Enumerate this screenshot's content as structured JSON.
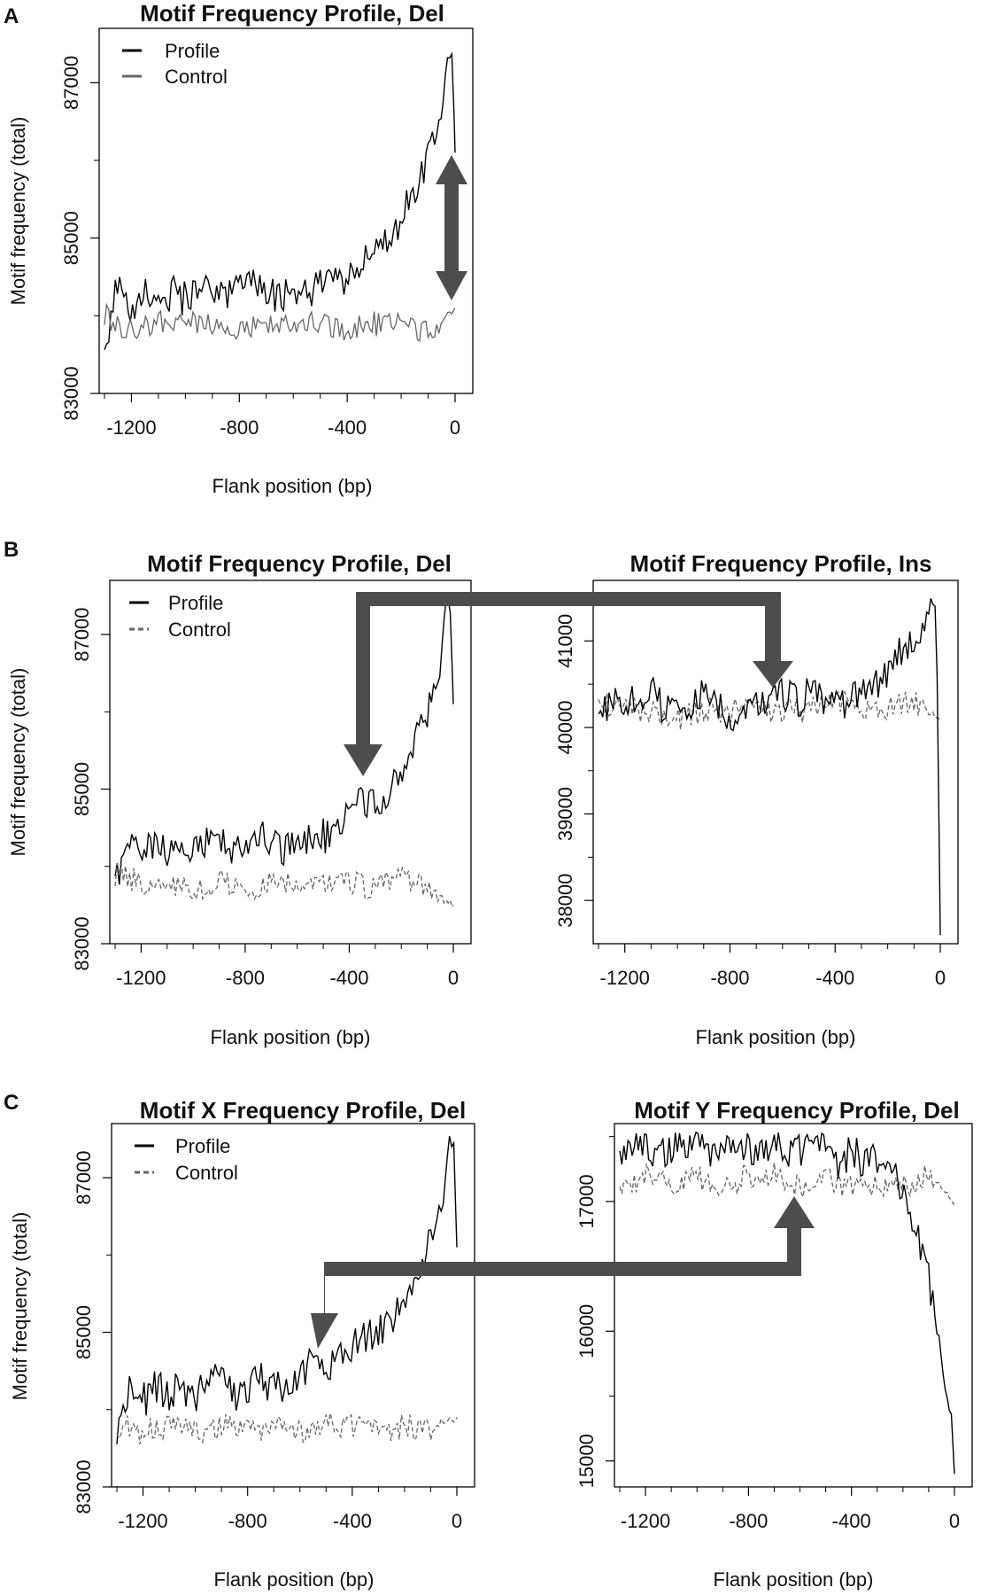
{
  "panels": [
    {
      "label": "A"
    },
    {
      "label": "B"
    },
    {
      "label": "C"
    }
  ],
  "colors": {
    "profile": "#000000",
    "control": "#666666",
    "arrow": "#4d4d4d"
  },
  "chart_data": [
    {
      "panel": "A",
      "type": "line",
      "title": "Motif Frequency Profile, Del",
      "xlabel": "Flank position (bp)",
      "ylabel": "Motif frequency (total)",
      "xlim": [
        -1300,
        0
      ],
      "ylim": [
        83000,
        87700
      ],
      "xticks": [
        -1200,
        -800,
        -400,
        0
      ],
      "yticks": [
        83000,
        85000,
        87000
      ],
      "legend": {
        "placement": "top-left",
        "entries": [
          "Profile",
          "Control"
        ]
      },
      "control_style": "solid",
      "annotations": [
        "double-arrow between Profile and Control near position 0"
      ],
      "series": [
        {
          "name": "Profile",
          "points": [
            [
              -1300,
              83600
            ],
            [
              -1250,
              84400
            ],
            [
              -1200,
              84100
            ],
            [
              -1150,
              84300
            ],
            [
              -1100,
              84200
            ],
            [
              -1050,
              84300
            ],
            [
              -1000,
              84200
            ],
            [
              -950,
              84300
            ],
            [
              -900,
              84400
            ],
            [
              -850,
              84200
            ],
            [
              -800,
              84300
            ],
            [
              -750,
              84400
            ],
            [
              -700,
              84300
            ],
            [
              -650,
              84200
            ],
            [
              -600,
              84400
            ],
            [
              -550,
              84300
            ],
            [
              -500,
              84400
            ],
            [
              -450,
              84400
            ],
            [
              -400,
              84500
            ],
            [
              -350,
              84700
            ],
            [
              -300,
              84800
            ],
            [
              -250,
              84900
            ],
            [
              -200,
              85300
            ],
            [
              -150,
              85600
            ],
            [
              -100,
              86000
            ],
            [
              -50,
              86500
            ],
            [
              -30,
              87400
            ],
            [
              -10,
              87300
            ],
            [
              0,
              86100
            ]
          ]
        },
        {
          "name": "Control",
          "points": [
            [
              -1300,
              84000
            ],
            [
              -1200,
              83800
            ],
            [
              -1100,
              83900
            ],
            [
              -1000,
              83900
            ],
            [
              -900,
              83900
            ],
            [
              -800,
              83800
            ],
            [
              -700,
              83900
            ],
            [
              -600,
              83900
            ],
            [
              -500,
              83900
            ],
            [
              -400,
              83800
            ],
            [
              -300,
              83900
            ],
            [
              -200,
              83900
            ],
            [
              -100,
              83800
            ],
            [
              0,
              84100
            ]
          ]
        }
      ]
    },
    {
      "panel": "B",
      "type": "line",
      "title": "Motif Frequency Profile, Del",
      "xlabel": "Flank position (bp)",
      "ylabel": "Motif frequency (total)",
      "xlim": [
        -1300,
        0
      ],
      "ylim": [
        83000,
        87700
      ],
      "xticks": [
        -1200,
        -800,
        -400,
        0
      ],
      "yticks": [
        83000,
        85000,
        87000
      ],
      "legend": {
        "placement": "top-left",
        "entries": [
          "Profile",
          "Control"
        ]
      },
      "control_style": "dashed",
      "annotations": [
        "arrow from Ins panel at position -650 to Del panel at position -380"
      ],
      "series": [
        {
          "name": "Profile",
          "points": [
            [
              -1300,
              83700
            ],
            [
              -1250,
              84400
            ],
            [
              -1200,
              84100
            ],
            [
              -1150,
              84300
            ],
            [
              -1100,
              84200
            ],
            [
              -1050,
              84300
            ],
            [
              -1000,
              84200
            ],
            [
              -950,
              84300
            ],
            [
              -900,
              84400
            ],
            [
              -850,
              84200
            ],
            [
              -800,
              84300
            ],
            [
              -750,
              84400
            ],
            [
              -700,
              84300
            ],
            [
              -650,
              84200
            ],
            [
              -600,
              84400
            ],
            [
              -550,
              84300
            ],
            [
              -500,
              84400
            ],
            [
              -450,
              84400
            ],
            [
              -400,
              84700
            ],
            [
              -350,
              84900
            ],
            [
              -300,
              84800
            ],
            [
              -250,
              85000
            ],
            [
              -200,
              85300
            ],
            [
              -150,
              85600
            ],
            [
              -100,
              86000
            ],
            [
              -50,
              86500
            ],
            [
              -30,
              87500
            ],
            [
              -10,
              87300
            ],
            [
              0,
              86100
            ]
          ]
        },
        {
          "name": "Control",
          "points": [
            [
              -1300,
              83900
            ],
            [
              -1200,
              83800
            ],
            [
              -1100,
              83800
            ],
            [
              -1000,
              83700
            ],
            [
              -900,
              83800
            ],
            [
              -800,
              83700
            ],
            [
              -700,
              83800
            ],
            [
              -600,
              83800
            ],
            [
              -500,
              83800
            ],
            [
              -400,
              83800
            ],
            [
              -300,
              83700
            ],
            [
              -200,
              83900
            ],
            [
              -100,
              83700
            ],
            [
              0,
              83500
            ]
          ]
        }
      ]
    },
    {
      "panel": "B",
      "type": "line",
      "title": "Motif Frequency Profile, Ins",
      "xlabel": "Flank position (bp)",
      "ylabel": "",
      "xlim": [
        -1300,
        0
      ],
      "ylim": [
        37500,
        41700
      ],
      "xticks": [
        -1200,
        -800,
        -400,
        0
      ],
      "yticks": [
        38000,
        39000,
        40000,
        41000
      ],
      "legend": null,
      "control_style": "dashed",
      "series": [
        {
          "name": "Profile",
          "points": [
            [
              -1300,
              40200
            ],
            [
              -1250,
              40300
            ],
            [
              -1200,
              40300
            ],
            [
              -1150,
              40400
            ],
            [
              -1100,
              40400
            ],
            [
              -1050,
              40200
            ],
            [
              -1000,
              40300
            ],
            [
              -950,
              40300
            ],
            [
              -900,
              40400
            ],
            [
              -850,
              40300
            ],
            [
              -800,
              40100
            ],
            [
              -750,
              40200
            ],
            [
              -700,
              40300
            ],
            [
              -650,
              40300
            ],
            [
              -600,
              40400
            ],
            [
              -550,
              40300
            ],
            [
              -500,
              40400
            ],
            [
              -450,
              40300
            ],
            [
              -400,
              40300
            ],
            [
              -350,
              40300
            ],
            [
              -300,
              40400
            ],
            [
              -250,
              40500
            ],
            [
              -200,
              40600
            ],
            [
              -150,
              40900
            ],
            [
              -100,
              41000
            ],
            [
              -50,
              41300
            ],
            [
              -30,
              41500
            ],
            [
              -15,
              41300
            ],
            [
              -5,
              39000
            ],
            [
              0,
              37600
            ]
          ]
        },
        {
          "name": "Control",
          "points": [
            [
              -1300,
              40300
            ],
            [
              -1200,
              40200
            ],
            [
              -1100,
              40200
            ],
            [
              -1000,
              40100
            ],
            [
              -900,
              40200
            ],
            [
              -800,
              40200
            ],
            [
              -700,
              40200
            ],
            [
              -600,
              40200
            ],
            [
              -500,
              40200
            ],
            [
              -400,
              40300
            ],
            [
              -300,
              40200
            ],
            [
              -200,
              40200
            ],
            [
              -100,
              40300
            ],
            [
              0,
              40100
            ]
          ]
        }
      ]
    },
    {
      "panel": "C",
      "type": "line",
      "title": "Motif X Frequency Profile, Del",
      "xlabel": "Flank position (bp)",
      "ylabel": "Motif frequency (total)",
      "xlim": [
        -1300,
        0
      ],
      "ylim": [
        83000,
        87700
      ],
      "xticks": [
        -1200,
        -800,
        -400,
        0
      ],
      "yticks": [
        83000,
        85000,
        87000
      ],
      "legend": {
        "placement": "top-left",
        "entries": [
          "Profile",
          "Control"
        ]
      },
      "control_style": "dashed",
      "annotations": [
        "arrow from Motif Y panel at position -640 to Motif X panel at position -560"
      ],
      "series": [
        {
          "name": "Profile",
          "points": [
            [
              -1300,
              83600
            ],
            [
              -1250,
              84400
            ],
            [
              -1200,
              84100
            ],
            [
              -1150,
              84300
            ],
            [
              -1100,
              84200
            ],
            [
              -1050,
              84300
            ],
            [
              -1000,
              84200
            ],
            [
              -950,
              84300
            ],
            [
              -900,
              84400
            ],
            [
              -850,
              84200
            ],
            [
              -800,
              84300
            ],
            [
              -750,
              84400
            ],
            [
              -700,
              84300
            ],
            [
              -650,
              84200
            ],
            [
              -600,
              84400
            ],
            [
              -550,
              84600
            ],
            [
              -500,
              84500
            ],
            [
              -450,
              84700
            ],
            [
              -400,
              84800
            ],
            [
              -350,
              84900
            ],
            [
              -300,
              85000
            ],
            [
              -250,
              85200
            ],
            [
              -200,
              85500
            ],
            [
              -150,
              85800
            ],
            [
              -100,
              86200
            ],
            [
              -50,
              86700
            ],
            [
              -30,
              87500
            ],
            [
              -10,
              87400
            ],
            [
              0,
              86100
            ]
          ]
        },
        {
          "name": "Control",
          "points": [
            [
              -1300,
              83800
            ],
            [
              -1200,
              83700
            ],
            [
              -1100,
              83800
            ],
            [
              -1000,
              83700
            ],
            [
              -900,
              83800
            ],
            [
              -800,
              83700
            ],
            [
              -700,
              83800
            ],
            [
              -600,
              83700
            ],
            [
              -500,
              83800
            ],
            [
              -400,
              83800
            ],
            [
              -300,
              83700
            ],
            [
              -200,
              83800
            ],
            [
              -100,
              83700
            ],
            [
              0,
              83900
            ]
          ]
        }
      ]
    },
    {
      "panel": "C",
      "type": "line",
      "title": "Motif Y Frequency Profile, Del",
      "xlabel": "Flank position (bp)",
      "ylabel": "",
      "xlim": [
        -1300,
        0
      ],
      "ylim": [
        14800,
        17600
      ],
      "xticks": [
        -1200,
        -800,
        -400,
        0
      ],
      "yticks": [
        15000,
        16000,
        17000
      ],
      "legend": null,
      "control_style": "dashed",
      "series": [
        {
          "name": "Profile",
          "points": [
            [
              -1300,
              17300
            ],
            [
              -1250,
              17400
            ],
            [
              -1200,
              17400
            ],
            [
              -1150,
              17400
            ],
            [
              -1100,
              17400
            ],
            [
              -1050,
              17400
            ],
            [
              -1000,
              17400
            ],
            [
              -950,
              17400
            ],
            [
              -900,
              17400
            ],
            [
              -850,
              17400
            ],
            [
              -800,
              17400
            ],
            [
              -750,
              17400
            ],
            [
              -700,
              17400
            ],
            [
              -650,
              17400
            ],
            [
              -600,
              17400
            ],
            [
              -550,
              17400
            ],
            [
              -500,
              17400
            ],
            [
              -450,
              17300
            ],
            [
              -400,
              17400
            ],
            [
              -350,
              17300
            ],
            [
              -300,
              17300
            ],
            [
              -250,
              17200
            ],
            [
              -200,
              17100
            ],
            [
              -150,
              16800
            ],
            [
              -100,
              16400
            ],
            [
              -70,
              16000
            ],
            [
              -50,
              15800
            ],
            [
              -30,
              15500
            ],
            [
              -10,
              15300
            ],
            [
              0,
              14900
            ]
          ]
        },
        {
          "name": "Control",
          "points": [
            [
              -1300,
              17100
            ],
            [
              -1200,
              17200
            ],
            [
              -1100,
              17100
            ],
            [
              -1000,
              17200
            ],
            [
              -900,
              17100
            ],
            [
              -800,
              17200
            ],
            [
              -700,
              17200
            ],
            [
              -600,
              17100
            ],
            [
              -500,
              17200
            ],
            [
              -400,
              17100
            ],
            [
              -300,
              17100
            ],
            [
              -200,
              17100
            ],
            [
              -100,
              17200
            ],
            [
              0,
              17000
            ]
          ]
        }
      ]
    }
  ]
}
